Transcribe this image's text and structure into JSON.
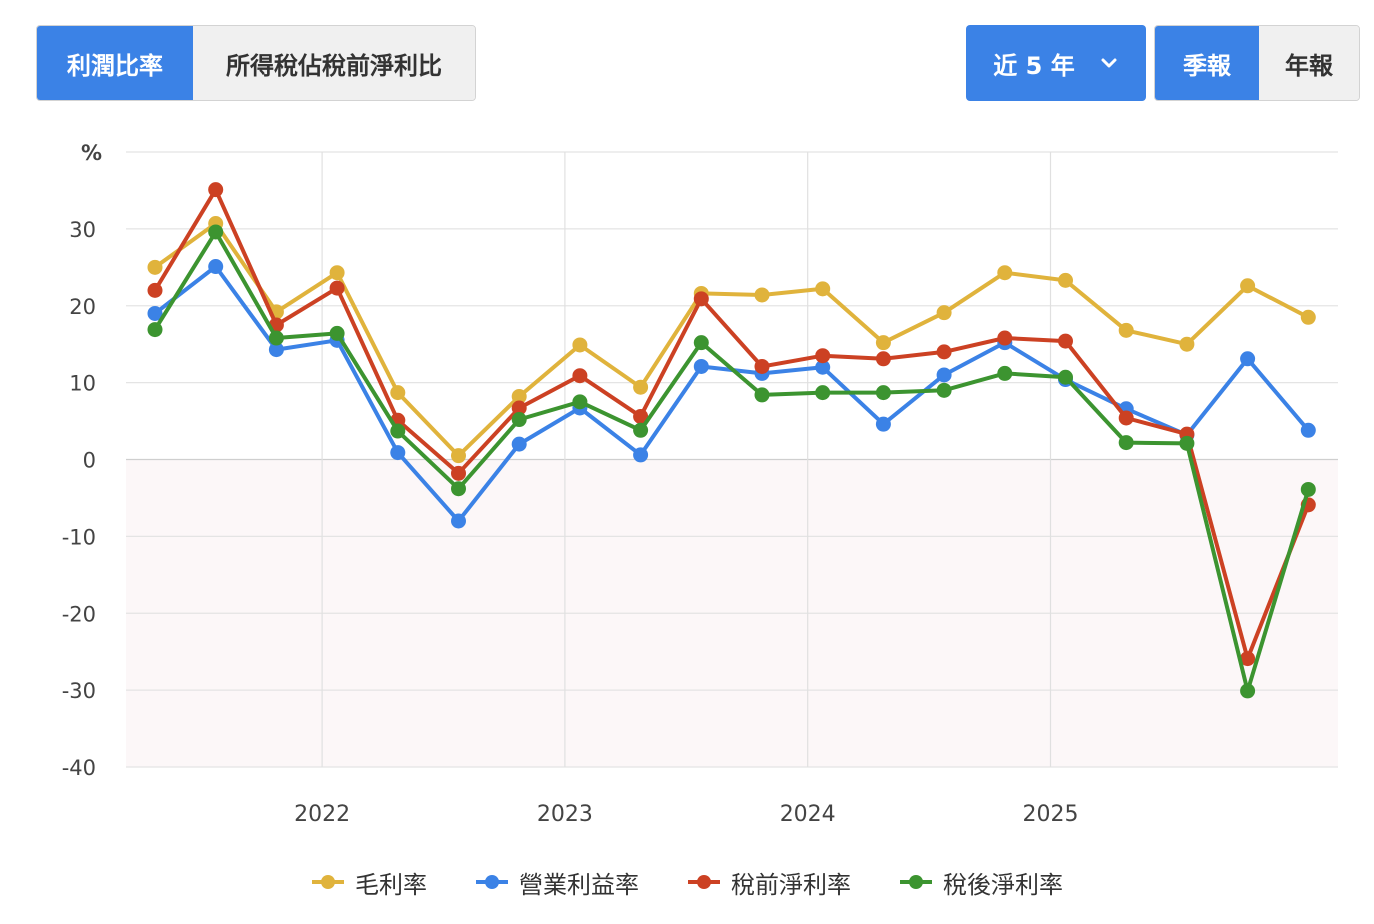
{
  "tabs": {
    "profit_ratio": "利潤比率",
    "tax_ratio": "所得稅佔稅前淨利比"
  },
  "period": {
    "label": "近 5 年"
  },
  "frequency": {
    "quarterly": "季報",
    "annual": "年報"
  },
  "colors": {
    "gross": "#e0b33c",
    "operating": "#3b82e6",
    "pretax": "#cc4123",
    "net": "#3c9430",
    "active_button": "#3b82e6",
    "negative_band": "#fcf7f8"
  },
  "chart_data": {
    "type": "line",
    "ylabel": "%",
    "ylim": [
      -40,
      40
    ],
    "yticks": [
      -40,
      -30,
      -20,
      -10,
      0,
      10,
      20,
      30
    ],
    "x_year_labels": [
      "2022",
      "2023",
      "2024",
      "2025"
    ],
    "x": [
      "2021Q2",
      "2021Q3",
      "2021Q4",
      "2022Q1",
      "2022Q2",
      "2022Q3",
      "2022Q4",
      "2023Q1",
      "2023Q2",
      "2023Q3",
      "2023Q4",
      "2024Q1",
      "2024Q2",
      "2024Q3",
      "2024Q4",
      "2025Q1",
      "2025Q2",
      "2025Q3",
      "2025Q4",
      "2026Q1"
    ],
    "grid": true,
    "legend_position": "bottom",
    "series": [
      {
        "name": "毛利率",
        "color": "#e0b33c",
        "values": [
          25.0,
          30.7,
          19.2,
          24.3,
          8.7,
          0.5,
          8.2,
          14.9,
          9.4,
          21.6,
          21.4,
          22.2,
          15.2,
          19.1,
          24.3,
          23.3,
          16.8,
          15.0,
          22.6,
          18.5
        ]
      },
      {
        "name": "營業利益率",
        "color": "#3b82e6",
        "values": [
          19.0,
          25.1,
          14.3,
          15.5,
          0.9,
          -8.0,
          2.0,
          6.7,
          0.6,
          12.1,
          11.2,
          12.0,
          4.6,
          11.0,
          15.2,
          10.4,
          6.6,
          3.2,
          13.1,
          3.8
        ]
      },
      {
        "name": "稅前淨利率",
        "color": "#cc4123",
        "values": [
          22.0,
          35.1,
          17.5,
          22.3,
          5.1,
          -1.8,
          6.7,
          10.9,
          5.6,
          20.9,
          12.1,
          13.5,
          13.1,
          14.0,
          15.8,
          15.4,
          5.4,
          3.3,
          -25.9,
          -5.9
        ]
      },
      {
        "name": "稅後淨利率",
        "color": "#3c9430",
        "values": [
          16.9,
          29.6,
          15.8,
          16.4,
          3.7,
          -3.8,
          5.2,
          7.5,
          3.8,
          15.2,
          8.4,
          8.7,
          8.7,
          9.0,
          11.2,
          10.7,
          2.2,
          2.1,
          -30.1,
          -3.9
        ]
      }
    ]
  }
}
